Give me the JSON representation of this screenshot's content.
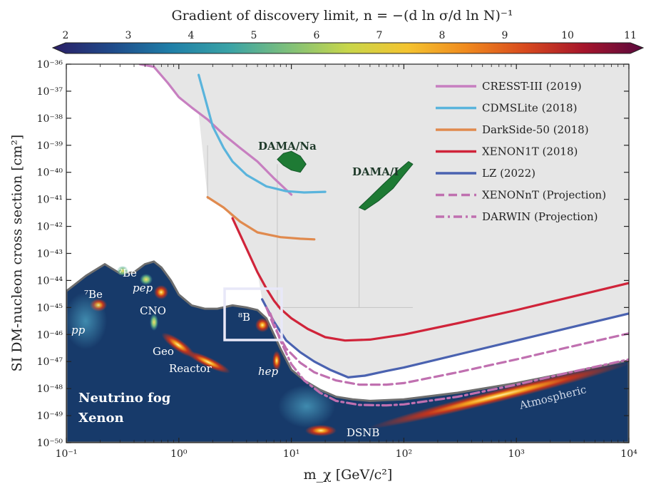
{
  "chart_data": {
    "type": "line",
    "title": "",
    "xlabel": "m_χ [GeV/c²]",
    "ylabel": "SI DM-nucleon cross section [cm²]",
    "xscale": "log",
    "yscale": "log",
    "xlim": [
      0.1,
      10000
    ],
    "ylim": [
      1e-50,
      1e-36
    ],
    "x_ticks": [
      "10⁻¹",
      "10⁰",
      "10¹",
      "10²",
      "10³",
      "10⁴"
    ],
    "y_ticks": [
      "10⁻⁵⁰",
      "10⁻⁴⁹",
      "10⁻⁴⁸",
      "10⁻⁴⁷",
      "10⁻⁴⁶",
      "10⁻⁴⁵",
      "10⁻⁴⁴",
      "10⁻⁴³",
      "10⁻⁴²",
      "10⁻⁴¹",
      "10⁻⁴⁰",
      "10⁻³⁹",
      "10⁻³⁸",
      "10⁻³⁷",
      "10⁻³⁶"
    ],
    "colorbar": {
      "label": "Gradient of discovery limit, n = −(d ln σ/d ln N)⁻¹",
      "range": [
        2,
        11
      ],
      "ticks": [
        "2",
        "3",
        "4",
        "5",
        "6",
        "7",
        "8",
        "9",
        "10",
        "11"
      ],
      "colors": [
        "#2b1f66",
        "#1f4a8a",
        "#1f7fa8",
        "#3aa3a6",
        "#7fc07a",
        "#c8d64a",
        "#f4c430",
        "#f08a1e",
        "#d84a1e",
        "#a5142b",
        "#5a0a3e"
      ]
    },
    "legend_position": "top-right",
    "series": [
      {
        "name": "CRESST-III (2019)",
        "color": "#c77fc0",
        "style": "solid",
        "x": [
          0.45,
          0.6,
          0.8,
          1.0,
          1.3,
          1.8,
          2.5,
          3.5,
          5,
          7,
          10
        ],
        "y": [
          1e-36,
          8e-37,
          2e-37,
          6e-38,
          2.5e-38,
          9e-39,
          2.5e-39,
          8e-40,
          2.5e-40,
          6e-41,
          1.5e-41
        ]
      },
      {
        "name": "CDMSLite (2018)",
        "color": "#5ab4dc",
        "style": "solid",
        "x": [
          1.5,
          1.7,
          2.0,
          2.5,
          3.0,
          4.0,
          6.0,
          9.0,
          13,
          20
        ],
        "y": [
          4e-37,
          6e-38,
          5e-39,
          8e-40,
          2.5e-40,
          8e-41,
          3e-41,
          2e-41,
          1.8e-41,
          1.9e-41
        ]
      },
      {
        "name": "DarkSide-50 (2018)",
        "color": "#e08a4e",
        "style": "solid",
        "x": [
          1.8,
          2.5,
          3.5,
          5,
          8,
          12,
          16
        ],
        "y": [
          1.2e-41,
          5e-42,
          1.5e-42,
          6e-43,
          4e-43,
          3.5e-43,
          3.3e-43
        ]
      },
      {
        "name": "XENON1T (2018)",
        "color": "#d0243a",
        "style": "solid",
        "x": [
          3,
          4,
          5,
          6,
          7,
          8,
          10,
          14,
          20,
          30,
          50,
          100,
          300,
          1000,
          3000,
          10000
        ],
        "y": [
          2e-42,
          1.5e-43,
          2e-44,
          5e-45,
          1.8e-45,
          9e-46,
          4e-46,
          1.6e-46,
          8e-47,
          6e-47,
          6.5e-47,
          1e-46,
          2.6e-46,
          8e-46,
          2.4e-45,
          8e-45
        ]
      },
      {
        "name": "LZ (2022)",
        "color": "#4a62b0",
        "style": "solid",
        "x": [
          5.5,
          7,
          9,
          12,
          16,
          22,
          32,
          45,
          70,
          100,
          300,
          1000,
          3000,
          10000
        ],
        "y": [
          2e-45,
          3e-46,
          6e-47,
          2.2e-47,
          1e-47,
          5e-48,
          2.6e-48,
          3e-48,
          4.5e-48,
          6e-48,
          1.8e-47,
          6e-47,
          1.8e-46,
          6e-46
        ]
      },
      {
        "name": "XENONnT (Projection)",
        "color": "#c070b0",
        "style": "dashed",
        "x": [
          6,
          7,
          9,
          12,
          16,
          25,
          40,
          70,
          100,
          300,
          1000,
          3000,
          10000
        ],
        "y": [
          1e-45,
          2e-46,
          3e-47,
          9e-48,
          4e-48,
          2e-48,
          1.4e-48,
          1.4e-48,
          1.6e-48,
          4e-48,
          1.2e-47,
          3.5e-47,
          1.1e-46
        ]
      },
      {
        "name": "DARWIN (Projection)",
        "color": "#c070b0",
        "style": "dashdot",
        "x": [
          6.5,
          8,
          10,
          13,
          18,
          25,
          40,
          70,
          100,
          300,
          1000,
          3000,
          10000
        ],
        "y": [
          6e-46,
          6e-47,
          8e-48,
          2e-48,
          7e-49,
          3.5e-49,
          2.5e-49,
          2.4e-49,
          2.6e-49,
          5e-49,
          1.4e-48,
          4e-48,
          1.2e-47
        ]
      }
    ],
    "regions": [
      {
        "name": "DAMA/Na",
        "color": "#1e7a34",
        "x": [
          7.5,
          8.5,
          10,
          12,
          13.5,
          12,
          10,
          8.5,
          7.5
        ],
        "y": [
          3e-40,
          5e-40,
          6e-40,
          4e-40,
          2e-40,
          1e-40,
          1.2e-40,
          1.8e-40,
          3e-40
        ]
      },
      {
        "name": "DAMA/I",
        "color": "#1e7a34",
        "x": [
          40,
          50,
          65,
          85,
          110,
          120,
          100,
          80,
          60,
          45,
          40
        ],
        "y": [
          5e-42,
          1.2e-41,
          3.5e-41,
          1e-40,
          2.5e-40,
          2e-40,
          8e-41,
          2.5e-41,
          9e-42,
          4e-42,
          5e-42
        ]
      }
    ],
    "fog_region_labels": [
      "Neutrino fog",
      "Xenon"
    ],
    "source_labels": [
      "⁷Be",
      "⁷Be",
      "pep",
      "CNO",
      "pp",
      "Geo",
      "Reactor",
      "⁸B",
      "hep",
      "DSNB",
      "Atmospheric"
    ]
  }
}
